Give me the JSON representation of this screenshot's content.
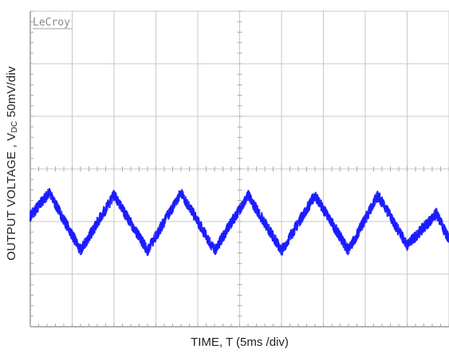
{
  "chart_data": {
    "type": "line",
    "title": "",
    "brand": "LeCroy",
    "ylabel": {
      "prefix": "OUTPUT VOLTAGE , V",
      "subscript": "DC",
      "suffix": " 50mV/div"
    },
    "xlabel": "TIME, T (5ms /div)",
    "grid": true,
    "x_divisions": 10,
    "y_divisions": 6,
    "x_units": "div",
    "y_units": "div",
    "xlim": [
      0,
      10
    ],
    "ylim": [
      0,
      6
    ],
    "trace_color": "#1a1aff",
    "grid_color": "#c8c8c8",
    "trace_noise_div": 0.1,
    "series": [
      {
        "x": [
          0,
          0.45,
          1.2,
          2.0,
          2.8,
          3.6,
          4.4,
          5.2,
          6.0,
          6.8,
          7.6,
          8.3,
          9.0,
          9.7,
          10.0
        ],
        "y": [
          2.1,
          2.55,
          1.45,
          2.5,
          1.45,
          2.55,
          1.45,
          2.5,
          1.45,
          2.5,
          1.45,
          2.5,
          1.55,
          2.15,
          1.65
        ]
      }
    ]
  }
}
